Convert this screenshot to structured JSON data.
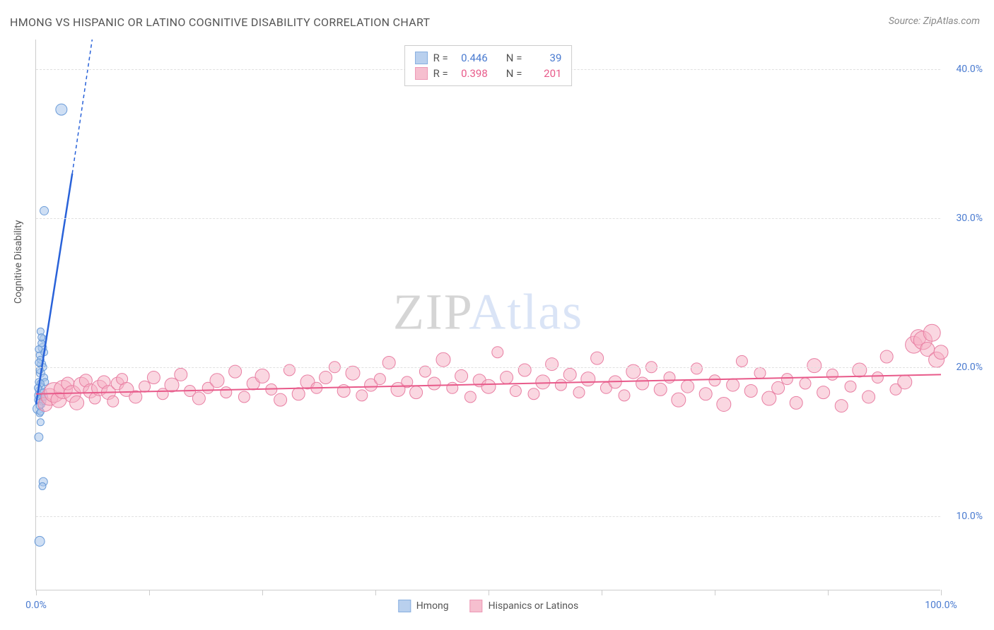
{
  "title": "HMONG VS HISPANIC OR LATINO COGNITIVE DISABILITY CORRELATION CHART",
  "source": "Source: ZipAtlas.com",
  "y_axis_label": "Cognitive Disability",
  "watermark": {
    "part1": "ZIP",
    "part2": "Atlas"
  },
  "chart": {
    "type": "scatter",
    "xlim": [
      0,
      100
    ],
    "ylim": [
      5,
      42
    ],
    "x_ticks": [
      0,
      12.5,
      25,
      37.5,
      50,
      62.5,
      75,
      87.5,
      100
    ],
    "x_tick_labels": {
      "0": "0.0%",
      "100": "100.0%"
    },
    "y_grid": [
      10,
      20,
      30,
      40
    ],
    "y_tick_labels": [
      "10.0%",
      "20.0%",
      "30.0%",
      "40.0%"
    ],
    "background_color": "#ffffff",
    "grid_color": "#e0e0e0",
    "axis_color": "#cccccc",
    "tick_label_color": "#4a7bd0",
    "series": [
      {
        "name": "Hmong",
        "legend_label": "Hmong",
        "marker_fill": "#a8c5eb",
        "marker_stroke": "#6a9bd8",
        "marker_opacity": 0.55,
        "line_color": "#2962d9",
        "line_width": 2.5,
        "stat_color": "#4a7bd0",
        "R": "0.446",
        "N": "39",
        "trend": {
          "x1": 0,
          "y1": 17.5,
          "x2": 4,
          "y2": 33,
          "x2_dash": 6.2,
          "y2_dash": 42
        },
        "points": [
          {
            "x": 0.2,
            "y": 17.2,
            "r": 7
          },
          {
            "x": 0.3,
            "y": 17.8,
            "r": 6
          },
          {
            "x": 0.4,
            "y": 18.4,
            "r": 6
          },
          {
            "x": 0.3,
            "y": 19.0,
            "r": 5
          },
          {
            "x": 0.5,
            "y": 19.6,
            "r": 6
          },
          {
            "x": 0.6,
            "y": 20.2,
            "r": 6
          },
          {
            "x": 0.4,
            "y": 20.8,
            "r": 5
          },
          {
            "x": 0.7,
            "y": 21.3,
            "r": 6
          },
          {
            "x": 0.8,
            "y": 21.9,
            "r": 5
          },
          {
            "x": 0.5,
            "y": 22.4,
            "r": 5
          },
          {
            "x": 0.3,
            "y": 18.1,
            "r": 6
          },
          {
            "x": 0.6,
            "y": 18.7,
            "r": 5
          },
          {
            "x": 0.9,
            "y": 19.3,
            "r": 5
          },
          {
            "x": 0.4,
            "y": 16.9,
            "r": 5
          },
          {
            "x": 0.5,
            "y": 16.3,
            "r": 5
          },
          {
            "x": 0.3,
            "y": 15.3,
            "r": 6
          },
          {
            "x": 0.8,
            "y": 12.3,
            "r": 6
          },
          {
            "x": 0.7,
            "y": 12.0,
            "r": 5
          },
          {
            "x": 0.4,
            "y": 8.3,
            "r": 7
          },
          {
            "x": 0.9,
            "y": 30.5,
            "r": 6
          },
          {
            "x": 2.8,
            "y": 37.3,
            "r": 8
          },
          {
            "x": 0.6,
            "y": 17.5,
            "r": 5
          },
          {
            "x": 0.7,
            "y": 18.0,
            "r": 5
          },
          {
            "x": 0.5,
            "y": 20.5,
            "r": 5
          },
          {
            "x": 0.8,
            "y": 20.0,
            "r": 5
          },
          {
            "x": 0.9,
            "y": 21.0,
            "r": 5
          },
          {
            "x": 1.0,
            "y": 19.0,
            "r": 5
          },
          {
            "x": 0.4,
            "y": 19.8,
            "r": 5
          },
          {
            "x": 0.6,
            "y": 21.6,
            "r": 5
          },
          {
            "x": 0.3,
            "y": 20.3,
            "r": 5
          },
          {
            "x": 0.5,
            "y": 18.9,
            "r": 5
          },
          {
            "x": 0.7,
            "y": 17.7,
            "r": 5
          },
          {
            "x": 0.2,
            "y": 18.6,
            "r": 5
          },
          {
            "x": 0.8,
            "y": 18.3,
            "r": 5
          },
          {
            "x": 0.4,
            "y": 17.4,
            "r": 5
          },
          {
            "x": 0.9,
            "y": 18.0,
            "r": 5
          },
          {
            "x": 0.6,
            "y": 22.0,
            "r": 5
          },
          {
            "x": 0.3,
            "y": 21.2,
            "r": 5
          },
          {
            "x": 0.5,
            "y": 17.0,
            "r": 5
          }
        ]
      },
      {
        "name": "Hispanics or Latinos",
        "legend_label": "Hispanics or Latinos",
        "marker_fill": "#f5b0c4",
        "marker_stroke": "#e87fa3",
        "marker_opacity": 0.5,
        "line_color": "#e85a8a",
        "line_width": 2,
        "stat_color": "#e85a8a",
        "R": "0.398",
        "N": "201",
        "trend": {
          "x1": 0,
          "y1": 18.2,
          "x2": 100,
          "y2": 19.5
        },
        "points": [
          {
            "x": 1,
            "y": 17.5,
            "r": 10
          },
          {
            "x": 1.5,
            "y": 18.0,
            "r": 12
          },
          {
            "x": 2,
            "y": 18.3,
            "r": 14
          },
          {
            "x": 2.5,
            "y": 17.8,
            "r": 11
          },
          {
            "x": 3,
            "y": 18.5,
            "r": 13
          },
          {
            "x": 3.5,
            "y": 18.9,
            "r": 9
          },
          {
            "x": 4,
            "y": 18.2,
            "r": 12
          },
          {
            "x": 4.5,
            "y": 17.6,
            "r": 10
          },
          {
            "x": 5,
            "y": 18.8,
            "r": 11
          },
          {
            "x": 5.5,
            "y": 19.1,
            "r": 9
          },
          {
            "x": 6,
            "y": 18.4,
            "r": 10
          },
          {
            "x": 6.5,
            "y": 17.9,
            "r": 8
          },
          {
            "x": 7,
            "y": 18.6,
            "r": 11
          },
          {
            "x": 7.5,
            "y": 19.0,
            "r": 9
          },
          {
            "x": 8,
            "y": 18.3,
            "r": 10
          },
          {
            "x": 8.5,
            "y": 17.7,
            "r": 8
          },
          {
            "x": 9,
            "y": 18.9,
            "r": 9
          },
          {
            "x": 9.5,
            "y": 19.2,
            "r": 8
          },
          {
            "x": 10,
            "y": 18.5,
            "r": 10
          },
          {
            "x": 11,
            "y": 18.0,
            "r": 9
          },
          {
            "x": 12,
            "y": 18.7,
            "r": 8
          },
          {
            "x": 13,
            "y": 19.3,
            "r": 9
          },
          {
            "x": 14,
            "y": 18.2,
            "r": 8
          },
          {
            "x": 15,
            "y": 18.8,
            "r": 10
          },
          {
            "x": 16,
            "y": 19.5,
            "r": 9
          },
          {
            "x": 17,
            "y": 18.4,
            "r": 8
          },
          {
            "x": 18,
            "y": 17.9,
            "r": 9
          },
          {
            "x": 19,
            "y": 18.6,
            "r": 8
          },
          {
            "x": 20,
            "y": 19.1,
            "r": 10
          },
          {
            "x": 21,
            "y": 18.3,
            "r": 8
          },
          {
            "x": 22,
            "y": 19.7,
            "r": 9
          },
          {
            "x": 23,
            "y": 18.0,
            "r": 8
          },
          {
            "x": 24,
            "y": 18.9,
            "r": 9
          },
          {
            "x": 25,
            "y": 19.4,
            "r": 10
          },
          {
            "x": 26,
            "y": 18.5,
            "r": 8
          },
          {
            "x": 27,
            "y": 17.8,
            "r": 9
          },
          {
            "x": 28,
            "y": 19.8,
            "r": 8
          },
          {
            "x": 29,
            "y": 18.2,
            "r": 9
          },
          {
            "x": 30,
            "y": 19.0,
            "r": 10
          },
          {
            "x": 31,
            "y": 18.6,
            "r": 8
          },
          {
            "x": 32,
            "y": 19.3,
            "r": 9
          },
          {
            "x": 33,
            "y": 20.0,
            "r": 8
          },
          {
            "x": 34,
            "y": 18.4,
            "r": 9
          },
          {
            "x": 35,
            "y": 19.6,
            "r": 10
          },
          {
            "x": 36,
            "y": 18.1,
            "r": 8
          },
          {
            "x": 37,
            "y": 18.8,
            "r": 9
          },
          {
            "x": 38,
            "y": 19.2,
            "r": 8
          },
          {
            "x": 39,
            "y": 20.3,
            "r": 9
          },
          {
            "x": 40,
            "y": 18.5,
            "r": 10
          },
          {
            "x": 41,
            "y": 19.0,
            "r": 8
          },
          {
            "x": 42,
            "y": 18.3,
            "r": 9
          },
          {
            "x": 43,
            "y": 19.7,
            "r": 8
          },
          {
            "x": 44,
            "y": 18.9,
            "r": 9
          },
          {
            "x": 45,
            "y": 20.5,
            "r": 10
          },
          {
            "x": 46,
            "y": 18.6,
            "r": 8
          },
          {
            "x": 47,
            "y": 19.4,
            "r": 9
          },
          {
            "x": 48,
            "y": 18.0,
            "r": 8
          },
          {
            "x": 49,
            "y": 19.1,
            "r": 9
          },
          {
            "x": 50,
            "y": 18.7,
            "r": 10
          },
          {
            "x": 51,
            "y": 21.0,
            "r": 8
          },
          {
            "x": 52,
            "y": 19.3,
            "r": 9
          },
          {
            "x": 53,
            "y": 18.4,
            "r": 8
          },
          {
            "x": 54,
            "y": 19.8,
            "r": 9
          },
          {
            "x": 55,
            "y": 18.2,
            "r": 8
          },
          {
            "x": 56,
            "y": 19.0,
            "r": 10
          },
          {
            "x": 57,
            "y": 20.2,
            "r": 9
          },
          {
            "x": 58,
            "y": 18.8,
            "r": 8
          },
          {
            "x": 59,
            "y": 19.5,
            "r": 9
          },
          {
            "x": 60,
            "y": 18.3,
            "r": 8
          },
          {
            "x": 61,
            "y": 19.2,
            "r": 10
          },
          {
            "x": 62,
            "y": 20.6,
            "r": 9
          },
          {
            "x": 63,
            "y": 18.6,
            "r": 8
          },
          {
            "x": 64,
            "y": 19.0,
            "r": 9
          },
          {
            "x": 65,
            "y": 18.1,
            "r": 8
          },
          {
            "x": 66,
            "y": 19.7,
            "r": 10
          },
          {
            "x": 67,
            "y": 18.9,
            "r": 9
          },
          {
            "x": 68,
            "y": 20.0,
            "r": 8
          },
          {
            "x": 69,
            "y": 18.5,
            "r": 9
          },
          {
            "x": 70,
            "y": 19.3,
            "r": 8
          },
          {
            "x": 71,
            "y": 17.8,
            "r": 10
          },
          {
            "x": 72,
            "y": 18.7,
            "r": 9
          },
          {
            "x": 73,
            "y": 19.9,
            "r": 8
          },
          {
            "x": 74,
            "y": 18.2,
            "r": 9
          },
          {
            "x": 75,
            "y": 19.1,
            "r": 8
          },
          {
            "x": 76,
            "y": 17.5,
            "r": 10
          },
          {
            "x": 77,
            "y": 18.8,
            "r": 9
          },
          {
            "x": 78,
            "y": 20.4,
            "r": 8
          },
          {
            "x": 79,
            "y": 18.4,
            "r": 9
          },
          {
            "x": 80,
            "y": 19.6,
            "r": 8
          },
          {
            "x": 81,
            "y": 17.9,
            "r": 10
          },
          {
            "x": 82,
            "y": 18.6,
            "r": 9
          },
          {
            "x": 83,
            "y": 19.2,
            "r": 8
          },
          {
            "x": 84,
            "y": 17.6,
            "r": 9
          },
          {
            "x": 85,
            "y": 18.9,
            "r": 8
          },
          {
            "x": 86,
            "y": 20.1,
            "r": 10
          },
          {
            "x": 87,
            "y": 18.3,
            "r": 9
          },
          {
            "x": 88,
            "y": 19.5,
            "r": 8
          },
          {
            "x": 89,
            "y": 17.4,
            "r": 9
          },
          {
            "x": 90,
            "y": 18.7,
            "r": 8
          },
          {
            "x": 91,
            "y": 19.8,
            "r": 10
          },
          {
            "x": 92,
            "y": 18.0,
            "r": 9
          },
          {
            "x": 93,
            "y": 19.3,
            "r": 8
          },
          {
            "x": 94,
            "y": 20.7,
            "r": 9
          },
          {
            "x": 95,
            "y": 18.5,
            "r": 8
          },
          {
            "x": 96,
            "y": 19.0,
            "r": 10
          },
          {
            "x": 97,
            "y": 21.5,
            "r": 12
          },
          {
            "x": 97.5,
            "y": 22.0,
            "r": 11
          },
          {
            "x": 98,
            "y": 21.8,
            "r": 13
          },
          {
            "x": 98.5,
            "y": 21.2,
            "r": 10
          },
          {
            "x": 99,
            "y": 22.3,
            "r": 12
          },
          {
            "x": 99.5,
            "y": 20.5,
            "r": 11
          },
          {
            "x": 100,
            "y": 21.0,
            "r": 10
          }
        ]
      }
    ]
  }
}
